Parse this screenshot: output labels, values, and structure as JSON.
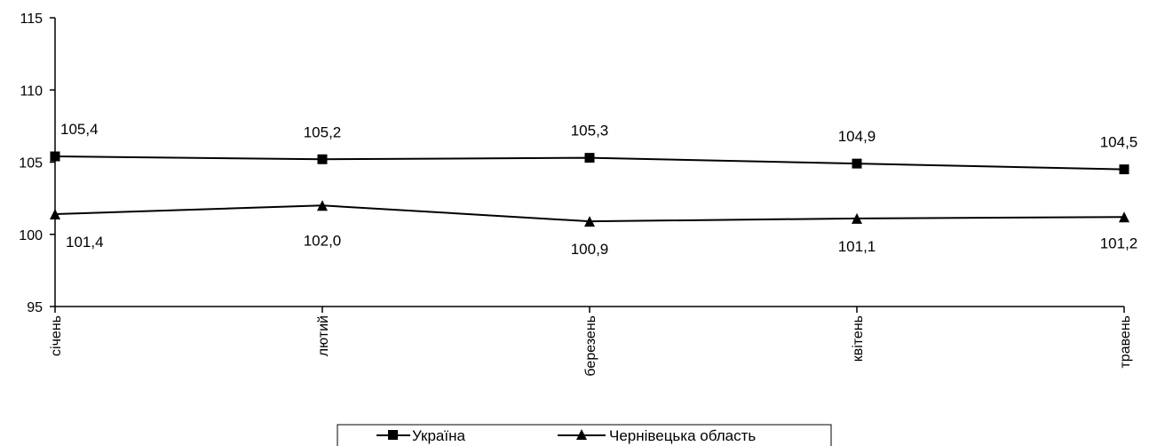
{
  "chart_data": {
    "type": "line",
    "categories": [
      "січень",
      "лютий",
      "березень",
      "квітень",
      "травень"
    ],
    "series": [
      {
        "name": "Україна",
        "marker": "square",
        "values": [
          105.4,
          105.2,
          105.3,
          104.9,
          104.5
        ],
        "labels": [
          "105,4",
          "105,2",
          "105,3",
          "104,9",
          "104,5"
        ],
        "label_position": "above"
      },
      {
        "name": "Чернівецька область",
        "marker": "triangle",
        "values": [
          101.4,
          102.0,
          100.9,
          101.1,
          101.2
        ],
        "labels": [
          "101,4",
          "102,0",
          "100,9",
          "101,1",
          "101,2"
        ],
        "label_position": "below"
      }
    ],
    "ylim": [
      95,
      115
    ],
    "yticks": [
      95,
      100,
      105,
      110,
      115
    ],
    "ytick_labels": [
      "95",
      "100",
      "105",
      "110",
      "115"
    ],
    "title": "",
    "xlabel": "",
    "ylabel": "",
    "grid": false,
    "legend": "bottom",
    "colors": {
      "line": "#000000",
      "background": "#ffffff"
    }
  }
}
